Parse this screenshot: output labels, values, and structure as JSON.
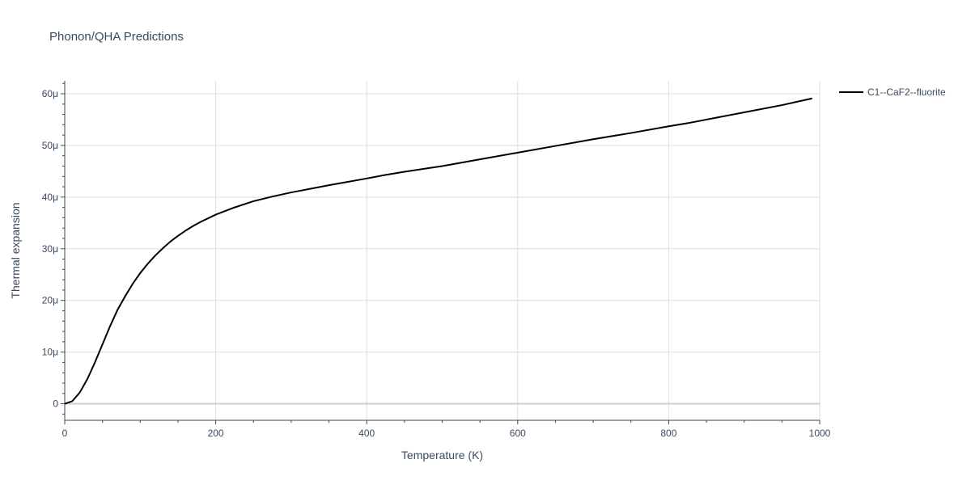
{
  "chart_data": {
    "type": "line",
    "title": "Phonon/QHA Predictions",
    "xlabel": "Temperature (K)",
    "ylabel": "Thermal expansion",
    "xlim": [
      0,
      1000
    ],
    "ylim": [
      -3.2e-06,
      6.25e-05
    ],
    "x_ticks": [
      0,
      200,
      400,
      600,
      800,
      1000
    ],
    "x_tick_labels": [
      "0",
      "200",
      "400",
      "600",
      "800",
      "1000"
    ],
    "y_ticks": [
      0,
      1e-05,
      2e-05,
      3e-05,
      4e-05,
      5e-05,
      6e-05
    ],
    "y_tick_labels": [
      "0",
      "10μ",
      "20μ",
      "30μ",
      "40μ",
      "50μ",
      "60μ"
    ],
    "grid": true,
    "legend_position": "top-right",
    "series": [
      {
        "name": "C1--CaF2--fluorite",
        "color": "#000000",
        "x": [
          0,
          10,
          20,
          30,
          40,
          50,
          60,
          70,
          80,
          90,
          100,
          110,
          120,
          130,
          140,
          150,
          160,
          170,
          180,
          190,
          200,
          225,
          250,
          275,
          300,
          325,
          350,
          400,
          425,
          450,
          500,
          550,
          600,
          650,
          700,
          750,
          800,
          825,
          850,
          900,
          950,
          990
        ],
        "y": [
          0,
          5e-07,
          2.2e-06,
          4.8e-06,
          8e-06,
          1.15e-05,
          1.5e-05,
          1.82e-05,
          2.08e-05,
          2.32e-05,
          2.53e-05,
          2.71e-05,
          2.87e-05,
          3.01e-05,
          3.14e-05,
          3.25e-05,
          3.35e-05,
          3.44e-05,
          3.52e-05,
          3.59e-05,
          3.66e-05,
          3.8e-05,
          3.92e-05,
          4.01e-05,
          4.09e-05,
          4.16e-05,
          4.23e-05,
          4.36e-05,
          4.43e-05,
          4.49e-05,
          4.6e-05,
          4.73e-05,
          4.86e-05,
          4.99e-05,
          5.12e-05,
          5.24e-05,
          5.37e-05,
          5.43e-05,
          5.5e-05,
          5.64e-05,
          5.78e-05,
          5.91e-05
        ]
      }
    ]
  }
}
